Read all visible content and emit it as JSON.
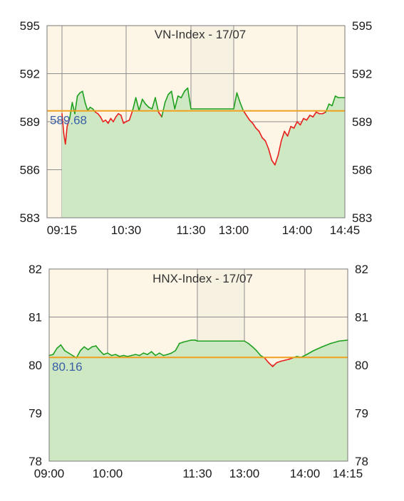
{
  "chart_data": [
    {
      "type": "line",
      "title": "VN-Index - 17/07",
      "ylim": [
        583,
        595
      ],
      "y_ticks": [
        "583",
        "586",
        "589",
        "592",
        "595"
      ],
      "x_ticks": [
        "09:15",
        "10:30",
        "11:30",
        "13:00",
        "14:00",
        "14:45"
      ],
      "reference_value": 589.68,
      "reference_label": "589.68",
      "reference_color": "#f0a020",
      "above_color": "#1fa01f",
      "below_color": "#e8201e",
      "fill_color": "#cde8c2",
      "background_color": "#fdf6e6",
      "break_color": "#f7f1e2",
      "lunch_break": [
        "11:30",
        "13:00"
      ],
      "series": [
        {
          "x": [
            "09:15",
            "09:17",
            "09:19",
            "09:21",
            "09:24",
            "09:27",
            "09:30",
            "09:33",
            "09:36",
            "09:39",
            "09:42",
            "09:45",
            "09:48",
            "09:51",
            "09:54",
            "09:57",
            "10:00",
            "10:03",
            "10:06",
            "10:09",
            "10:12",
            "10:15",
            "10:18",
            "10:21",
            "10:24",
            "10:27",
            "10:30",
            "10:33",
            "10:36",
            "10:39",
            "10:42",
            "10:45",
            "10:48",
            "10:51",
            "10:54",
            "10:57",
            "11:00",
            "11:03",
            "11:06",
            "11:09",
            "11:12",
            "11:15",
            "11:18",
            "11:21",
            "11:24",
            "11:27",
            "11:30",
            "13:00",
            "13:03",
            "13:06",
            "13:09",
            "13:12",
            "13:15",
            "13:18",
            "13:21",
            "13:24",
            "13:27",
            "13:30",
            "13:33",
            "13:36",
            "13:39",
            "13:42",
            "13:45",
            "13:48",
            "13:51",
            "13:54",
            "13:57",
            "14:00",
            "14:03",
            "14:06",
            "14:09",
            "14:12",
            "14:15",
            "14:18",
            "14:21",
            "14:24",
            "14:27",
            "14:30",
            "14:33",
            "14:36",
            "14:39",
            "14:42",
            "14:45"
          ],
          "y": [
            589.5,
            588.3,
            587.6,
            588.7,
            589.2,
            590.2,
            589.5,
            590.6,
            590.8,
            590.9,
            590.2,
            589.7,
            589.9,
            589.8,
            589.6,
            589.5,
            589.3,
            589.0,
            589.1,
            588.9,
            589.2,
            589.0,
            589.3,
            589.5,
            589.4,
            588.9,
            589.0,
            589.1,
            589.7,
            590.5,
            589.7,
            590.4,
            590.1,
            589.9,
            589.8,
            590.5,
            589.6,
            589.3,
            590.2,
            590.7,
            590.9,
            589.8,
            590.6,
            590.5,
            590.9,
            591.1,
            589.8,
            589.8,
            590.8,
            590.2,
            589.7,
            589.4,
            589.1,
            588.9,
            588.6,
            588.4,
            588.0,
            587.8,
            587.3,
            586.6,
            586.3,
            586.9,
            587.8,
            588.4,
            588.1,
            588.7,
            588.6,
            589.0,
            588.8,
            589.2,
            589.1,
            589.4,
            589.3,
            589.6,
            589.5,
            589.5,
            589.6,
            590.1,
            590.0,
            590.6,
            590.5,
            590.5,
            590.5
          ]
        }
      ]
    },
    {
      "type": "line",
      "title": "HNX-Index - 17/07",
      "ylim": [
        78,
        82
      ],
      "y_ticks": [
        "78",
        "79",
        "80",
        "81",
        "82"
      ],
      "x_ticks": [
        "09:00",
        "10:00",
        "11:30",
        "13:00",
        "14:00",
        "14:15"
      ],
      "reference_value": 80.16,
      "reference_label": "80.16",
      "reference_color": "#f0a020",
      "above_color": "#1fa01f",
      "below_color": "#e8201e",
      "fill_color": "#cde8c2",
      "background_color": "#fdf6e6",
      "break_color": "#f7f1e2",
      "lunch_break": [
        "11:30",
        "13:00"
      ],
      "series": [
        {
          "x": [
            "09:00",
            "09:04",
            "09:08",
            "09:12",
            "09:16",
            "09:20",
            "09:24",
            "09:28",
            "09:32",
            "09:36",
            "09:40",
            "09:44",
            "09:48",
            "09:52",
            "09:56",
            "10:00",
            "10:04",
            "10:08",
            "10:12",
            "10:16",
            "10:20",
            "10:24",
            "10:28",
            "10:32",
            "10:36",
            "10:40",
            "10:44",
            "10:48",
            "10:52",
            "10:56",
            "11:00",
            "11:04",
            "11:08",
            "11:12",
            "11:16",
            "11:20",
            "11:24",
            "11:28",
            "11:30",
            "13:00",
            "13:04",
            "13:08",
            "13:12",
            "13:16",
            "13:20",
            "13:24",
            "13:28",
            "13:32",
            "13:36",
            "13:40",
            "13:44",
            "13:48",
            "13:52",
            "13:56",
            "14:00",
            "14:03",
            "14:06",
            "14:09",
            "14:12",
            "14:15"
          ],
          "y": [
            80.2,
            80.22,
            80.35,
            80.42,
            80.3,
            80.25,
            80.2,
            80.15,
            80.3,
            80.38,
            80.32,
            80.38,
            80.4,
            80.3,
            80.22,
            80.25,
            80.2,
            80.22,
            80.18,
            80.2,
            80.18,
            80.2,
            80.22,
            80.2,
            80.25,
            80.22,
            80.28,
            80.2,
            80.25,
            80.2,
            80.22,
            80.25,
            80.3,
            80.45,
            80.48,
            80.5,
            80.52,
            80.52,
            80.5,
            80.5,
            80.45,
            80.38,
            80.3,
            80.2,
            80.15,
            80.05,
            79.97,
            80.05,
            80.08,
            80.1,
            80.12,
            80.15,
            80.18,
            80.16,
            80.2,
            80.3,
            80.38,
            80.45,
            80.5,
            80.52
          ]
        }
      ]
    }
  ]
}
